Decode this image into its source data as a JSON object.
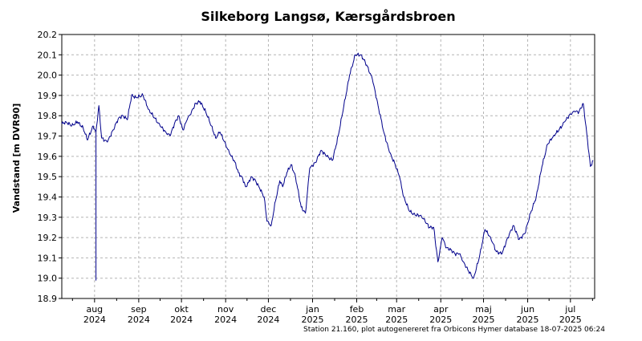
{
  "chart_data": {
    "type": "line",
    "title": "Silkeborg Langsø, Kærsgårdsbroen",
    "ylabel": "Vandstand [m DVR90]",
    "xlabel": "",
    "footer": "Station 21.160, plot autogenereret fra Orbicons Hymer database 18-07-2025 06:24",
    "ylim": [
      18.9,
      20.2
    ],
    "xlim": [
      "2024-07-09",
      "2025-07-18"
    ],
    "grid": true,
    "line_color": "#00008b",
    "y_ticks": [
      "18.9",
      "19.0",
      "19.1",
      "19.2",
      "19.3",
      "19.4",
      "19.5",
      "19.6",
      "19.7",
      "19.8",
      "19.9",
      "20.0",
      "20.1",
      "20.2"
    ],
    "month_ticks": [
      {
        "date": "2024-08-01",
        "month": "aug",
        "year": "2024"
      },
      {
        "date": "2024-09-01",
        "month": "sep",
        "year": "2024"
      },
      {
        "date": "2024-10-01",
        "month": "okt",
        "year": "2024"
      },
      {
        "date": "2024-11-01",
        "month": "nov",
        "year": "2024"
      },
      {
        "date": "2024-12-01",
        "month": "dec",
        "year": "2024"
      },
      {
        "date": "2025-01-01",
        "month": "jan",
        "year": "2025"
      },
      {
        "date": "2025-02-01",
        "month": "feb",
        "year": "2025"
      },
      {
        "date": "2025-03-01",
        "month": "mar",
        "year": "2025"
      },
      {
        "date": "2025-04-01",
        "month": "apr",
        "year": "2025"
      },
      {
        "date": "2025-05-01",
        "month": "maj",
        "year": "2025"
      },
      {
        "date": "2025-06-01",
        "month": "jun",
        "year": "2025"
      },
      {
        "date": "2025-07-01",
        "month": "jul",
        "year": "2025"
      }
    ],
    "series": [
      {
        "x": [
          "2024-07-09",
          "2024-07-12",
          "2024-07-16",
          "2024-07-20",
          "2024-07-24",
          "2024-07-27",
          "2024-07-31",
          "2024-08-02",
          "2024-08-02",
          "2024-08-02",
          "2024-08-04",
          "2024-08-06",
          "2024-08-10",
          "2024-08-14",
          "2024-08-18",
          "2024-08-21",
          "2024-08-24",
          "2024-08-27",
          "2024-08-30",
          "2024-09-04",
          "2024-09-08",
          "2024-09-12",
          "2024-09-16",
          "2024-09-20",
          "2024-09-23",
          "2024-09-26",
          "2024-09-29",
          "2024-10-02",
          "2024-10-05",
          "2024-10-08",
          "2024-10-11",
          "2024-10-14",
          "2024-10-18",
          "2024-10-22",
          "2024-10-25",
          "2024-10-28",
          "2024-11-01",
          "2024-11-04",
          "2024-11-07",
          "2024-11-10",
          "2024-11-13",
          "2024-11-15",
          "2024-11-17",
          "2024-11-19",
          "2024-11-22",
          "2024-11-25",
          "2024-11-28",
          "2024-11-30",
          "2024-12-03",
          "2024-12-06",
          "2024-12-09",
          "2024-12-11",
          "2024-12-14",
          "2024-12-17",
          "2024-12-20",
          "2024-12-24",
          "2024-12-27",
          "2024-12-30",
          "2025-01-03",
          "2025-01-07",
          "2025-01-11",
          "2025-01-15",
          "2025-01-19",
          "2025-01-23",
          "2025-01-27",
          "2025-01-31",
          "2025-02-04",
          "2025-02-08",
          "2025-02-12",
          "2025-02-16",
          "2025-02-20",
          "2025-02-24",
          "2025-02-28",
          "2025-03-03",
          "2025-03-06",
          "2025-03-10",
          "2025-03-14",
          "2025-03-18",
          "2025-03-21",
          "2025-03-24",
          "2025-03-27",
          "2025-03-30",
          "2025-04-02",
          "2025-04-05",
          "2025-04-08",
          "2025-04-11",
          "2025-04-14",
          "2025-04-17",
          "2025-04-20",
          "2025-04-24",
          "2025-04-28",
          "2025-05-02",
          "2025-05-06",
          "2025-05-10",
          "2025-05-14",
          "2025-05-18",
          "2025-05-22",
          "2025-05-26",
          "2025-05-30",
          "2025-06-03",
          "2025-06-07",
          "2025-06-11",
          "2025-06-15",
          "2025-06-19",
          "2025-06-23",
          "2025-06-27",
          "2025-07-01",
          "2025-07-04",
          "2025-07-07",
          "2025-07-10",
          "2025-07-13",
          "2025-07-15",
          "2025-07-17"
        ],
        "y": [
          19.76,
          19.77,
          19.75,
          19.77,
          19.74,
          19.68,
          19.75,
          19.72,
          18.99,
          19.72,
          19.85,
          19.69,
          19.67,
          19.73,
          19.79,
          19.8,
          19.78,
          19.9,
          19.89,
          19.9,
          19.83,
          19.79,
          19.75,
          19.72,
          19.7,
          19.76,
          19.8,
          19.73,
          19.78,
          19.82,
          19.86,
          19.87,
          19.82,
          19.75,
          19.69,
          19.72,
          19.66,
          19.61,
          19.58,
          19.52,
          19.49,
          19.45,
          19.47,
          19.5,
          19.48,
          19.44,
          19.4,
          19.28,
          19.26,
          19.38,
          19.48,
          19.45,
          19.52,
          19.56,
          19.5,
          19.35,
          19.32,
          19.54,
          19.57,
          19.63,
          19.6,
          19.58,
          19.7,
          19.85,
          20.0,
          20.1,
          20.1,
          20.05,
          19.98,
          19.85,
          19.72,
          19.62,
          19.56,
          19.5,
          19.4,
          19.33,
          19.31,
          19.31,
          19.28,
          19.25,
          19.25,
          19.08,
          19.2,
          19.15,
          19.14,
          19.12,
          19.12,
          19.08,
          19.04,
          19.0,
          19.1,
          19.24,
          19.2,
          19.13,
          19.12,
          19.2,
          19.26,
          19.19,
          19.22,
          19.32,
          19.4,
          19.55,
          19.66,
          19.7,
          19.73,
          19.77,
          19.81,
          19.82,
          19.82,
          19.86,
          19.68,
          19.55,
          19.58
        ]
      }
    ]
  }
}
